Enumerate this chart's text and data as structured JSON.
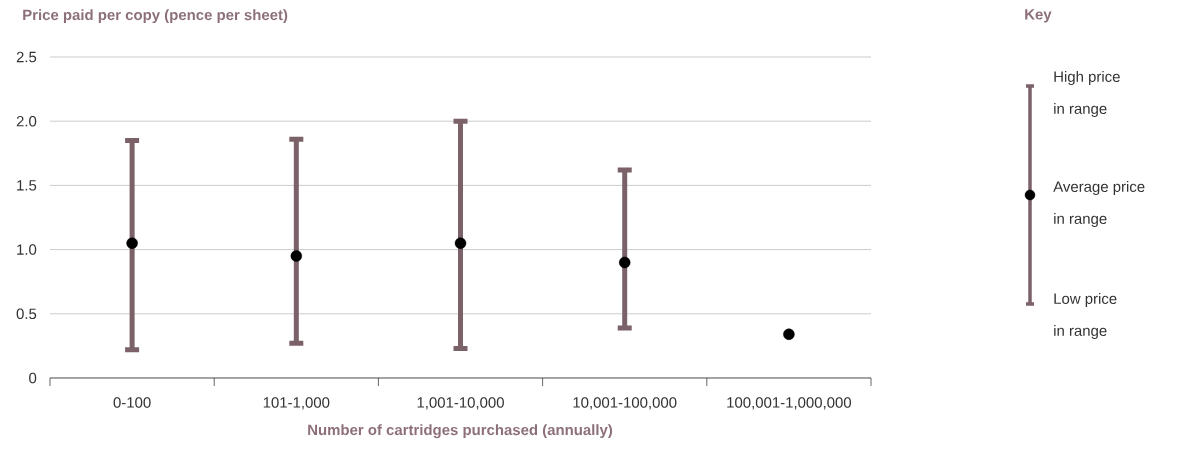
{
  "chart_data": {
    "type": "scatter",
    "title": "Price paid per copy (pence per sheet)",
    "xlabel": "Number of cartridges purchased (annually)",
    "categories": [
      "0-100",
      "101-1,000",
      "1,001-10,000",
      "10,001-100,000",
      "100,001-1,000,000"
    ],
    "values": [
      1.05,
      0.95,
      1.05,
      0.9,
      0.34
    ],
    "errors": [
      [
        0.22,
        1.85
      ],
      [
        0.27,
        1.86
      ],
      [
        0.23,
        2.0
      ],
      [
        0.39,
        1.62
      ],
      null
    ],
    "color": "#000000",
    "marker": "circle",
    "ylim": [
      0,
      2.5
    ],
    "yticks": [
      {
        "value": 0,
        "label": "0"
      },
      {
        "value": 0.5,
        "label": "0.5"
      },
      {
        "value": 1,
        "label": "1.0"
      },
      {
        "value": 1.5,
        "label": "1.5"
      },
      {
        "value": 2,
        "label": "2.0"
      },
      {
        "value": 2.5,
        "label": "2.5"
      }
    ],
    "grid": "y",
    "legend_title": "Key",
    "annotations": [
      "High price",
      "in range",
      "Average price",
      "in range",
      "Low price",
      "in range"
    ]
  }
}
